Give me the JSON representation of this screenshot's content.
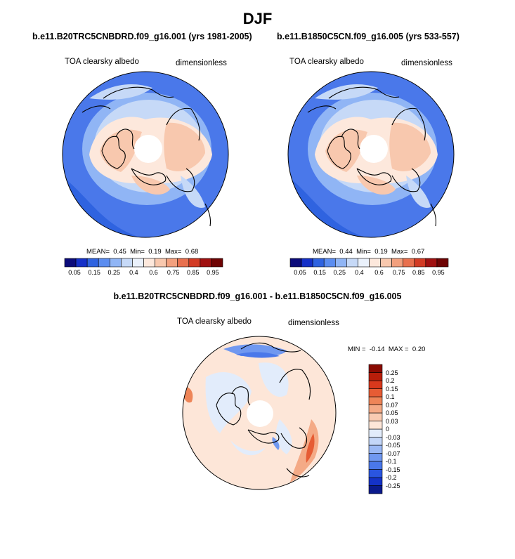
{
  "title": "DJF",
  "panels": [
    {
      "case": "b.e11.B20TRC5CNBDRD.f09_g16.001 (yrs 1981-2005)",
      "variable": "TOA clearsky albedo",
      "units": "dimensionless",
      "stats": {
        "mean_label": "MEAN=",
        "mean": "0.45",
        "min_label": "Min=",
        "min": "0.19",
        "max_label": "Max=",
        "max": "0.68"
      }
    },
    {
      "case": "b.e11.B1850C5CN.f09_g16.005 (yrs 533-557)",
      "variable": "TOA clearsky albedo",
      "units": "dimensionless",
      "stats": {
        "mean_label": "MEAN=",
        "mean": "0.44",
        "min_label": "Min=",
        "min": "0.19",
        "max_label": "Max=",
        "max": "0.67"
      }
    }
  ],
  "diff_panel": {
    "title": "b.e11.B20TRC5CNBDRD.f09_g16.001 - b.e11.B1850C5CN.f09_g16.005",
    "variable": "TOA clearsky albedo",
    "units": "dimensionless",
    "stats": {
      "min_label": "MIN =",
      "min": "-0.14",
      "max_label": "MAX =",
      "max": "0.20"
    }
  },
  "chart_data": [
    {
      "type": "heatmap",
      "projection": "north polar stereographic",
      "title": "b.e11.B20TRC5CNBDRD.f09_g16.001 (yrs 1981-2005)",
      "variable": "TOA clearsky albedo",
      "units": "dimensionless",
      "mean": 0.45,
      "min": 0.19,
      "max": 0.68,
      "colorbar": {
        "levels": [
          0.05,
          0.15,
          0.25,
          0.4,
          0.6,
          0.75,
          0.85,
          0.95
        ],
        "tick_labels": [
          "0.05",
          "0.15",
          "0.25",
          "0.4",
          "0.6",
          "0.75",
          "0.85",
          "0.95"
        ],
        "colors": [
          "#0b0b7a",
          "#1530c8",
          "#2f63e0",
          "#5b8df0",
          "#90b5f5",
          "#c6d9f7",
          "#eaf1fb",
          "#fde8dc",
          "#f8c8ae",
          "#f2a07e",
          "#e8704e",
          "#d23b24",
          "#a01010",
          "#6e0303"
        ]
      }
    },
    {
      "type": "heatmap",
      "projection": "north polar stereographic",
      "title": "b.e11.B1850C5CN.f09_g16.005 (yrs 533-557)",
      "variable": "TOA clearsky albedo",
      "units": "dimensionless",
      "mean": 0.44,
      "min": 0.19,
      "max": 0.67,
      "colorbar": {
        "levels": [
          0.05,
          0.15,
          0.25,
          0.4,
          0.6,
          0.75,
          0.85,
          0.95
        ],
        "tick_labels": [
          "0.05",
          "0.15",
          "0.25",
          "0.4",
          "0.6",
          "0.75",
          "0.85",
          "0.95"
        ],
        "colors": [
          "#0b0b7a",
          "#1530c8",
          "#2f63e0",
          "#5b8df0",
          "#90b5f5",
          "#c6d9f7",
          "#eaf1fb",
          "#fde8dc",
          "#f8c8ae",
          "#f2a07e",
          "#e8704e",
          "#d23b24",
          "#a01010",
          "#6e0303"
        ]
      }
    },
    {
      "type": "heatmap",
      "projection": "north polar stereographic",
      "title": "b.e11.B20TRC5CNBDRD.f09_g16.001 - b.e11.B1850C5CN.f09_g16.005",
      "variable": "TOA clearsky albedo",
      "units": "dimensionless",
      "min": -0.14,
      "max": 0.2,
      "colorbar": {
        "orientation": "vertical",
        "levels": [
          -0.25,
          -0.2,
          -0.15,
          -0.1,
          -0.07,
          -0.05,
          -0.03,
          0,
          0.03,
          0.05,
          0.07,
          0.1,
          0.15,
          0.2,
          0.25
        ],
        "tick_labels": [
          "-0.25",
          "-0.2",
          "-0.15",
          "-0.1",
          "-0.07",
          "-0.05",
          "-0.03",
          "0",
          "0.03",
          "0.05",
          "0.07",
          "0.1",
          "0.15",
          "0.2",
          "0.25"
        ],
        "colors": [
          "#0a1a8c",
          "#1432c8",
          "#2a55e0",
          "#4a78ea",
          "#7098f0",
          "#9ab8f4",
          "#c3d6f8",
          "#e2ecfb",
          "#fde6d8",
          "#f8cbb2",
          "#f4aa86",
          "#ee8558",
          "#e65c34",
          "#d8381c",
          "#b81e0a",
          "#8a0b02"
        ]
      }
    }
  ]
}
